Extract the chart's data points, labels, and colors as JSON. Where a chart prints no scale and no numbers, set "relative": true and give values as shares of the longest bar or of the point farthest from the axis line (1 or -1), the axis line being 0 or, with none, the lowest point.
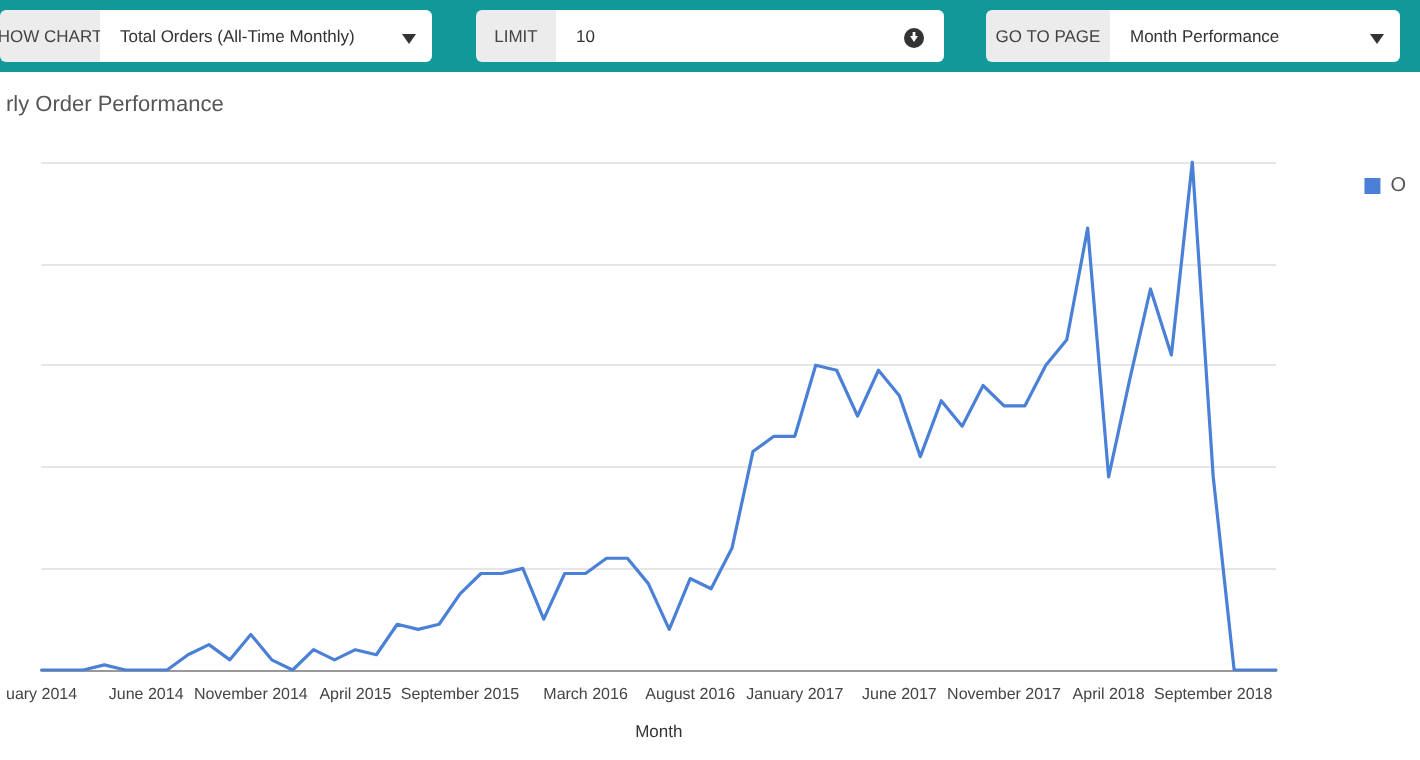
{
  "chart_data": {
    "type": "line",
    "title": "rly Order Performance",
    "xlabel": "Month",
    "relative": true,
    "grid": "y",
    "legend": "top right",
    "marker": "none",
    "line_style": "solid",
    "annotations": [
      "HOW CHART",
      "Total Orders (All-Time Monthly)",
      "LIMIT",
      "10",
      "GO TO PAGE",
      "Month Performance"
    ],
    "categories": [
      "uary 2014",
      null,
      null,
      null,
      null,
      "June 2014",
      null,
      null,
      null,
      null,
      "November 2014",
      null,
      null,
      null,
      null,
      "April 2015",
      null,
      null,
      null,
      null,
      "September 2015",
      null,
      null,
      null,
      null,
      null,
      "March 2016",
      null,
      null,
      null,
      null,
      "August 2016",
      null,
      null,
      null,
      null,
      "January 2017",
      null,
      null,
      null,
      null,
      "June 2017",
      null,
      null,
      null,
      null,
      "November 2017",
      null,
      null,
      null,
      null,
      "April 2018",
      null,
      null,
      null,
      null,
      "September 2018",
      null,
      null,
      null
    ],
    "series": [
      {
        "name": "O",
        "color": "#4a80d6",
        "values": [
          0,
          0,
          0,
          0.01,
          0,
          0,
          0,
          0.03,
          0.05,
          0.02,
          0.07,
          0.02,
          0,
          0.04,
          0.02,
          0.04,
          0.03,
          0.09,
          0.08,
          0.09,
          0.15,
          0.19,
          0.19,
          0.2,
          0.1,
          0.19,
          0.19,
          0.22,
          0.22,
          0.17,
          0.08,
          0.18,
          0.16,
          0.24,
          0.43,
          0.46,
          0.46,
          0.6,
          0.59,
          0.5,
          0.59,
          0.54,
          0.42,
          0.53,
          0.48,
          0.56,
          0.52,
          0.52,
          0.6,
          0.65,
          0.87,
          0.38,
          0.57,
          0.75,
          0.62,
          1,
          0.38,
          0,
          0,
          0
        ]
      }
    ]
  }
}
